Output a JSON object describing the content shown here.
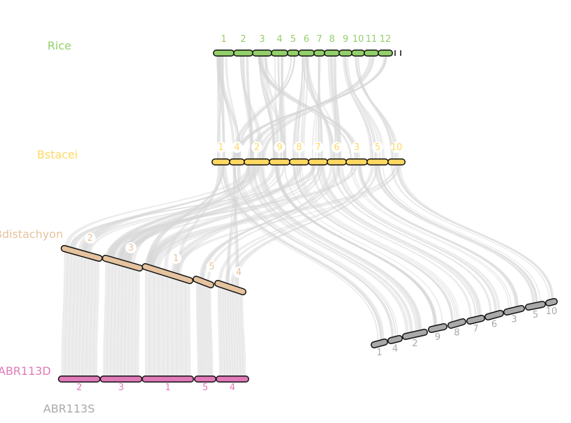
{
  "colors": {
    "rice": "#94cf6b",
    "bstacei": "#ffd862",
    "bdistachyon": "#e5c39f",
    "abr113d": "#e07ab8",
    "abr113s": "#a9a9a9",
    "link": "#d6d6d6",
    "outline": "#111111"
  },
  "genomes": [
    {
      "name": "Rice",
      "color_key": "rice",
      "chromosomes": [
        "1",
        "2",
        "3",
        "4",
        "5",
        "6",
        "7",
        "8",
        "9",
        "10",
        "11",
        "12"
      ]
    },
    {
      "name": "Bstacei",
      "color_key": "bstacei",
      "chromosomes": [
        "1",
        "4",
        "2",
        "9",
        "8",
        "7",
        "6",
        "3",
        "5",
        "10"
      ]
    },
    {
      "name": "Bdistachyon",
      "color_key": "bdistachyon",
      "chromosomes": [
        "2",
        "3",
        "1",
        "5",
        "4"
      ]
    },
    {
      "name": "ABR113D",
      "color_key": "abr113d",
      "chromosomes": [
        "2",
        "3",
        "1",
        "5",
        "4"
      ]
    },
    {
      "name": "ABR113S",
      "color_key": "abr113s",
      "chromosomes": [
        "1",
        "4",
        "2",
        "9",
        "8",
        "7",
        "6",
        "3",
        "5",
        "10"
      ]
    }
  ]
}
